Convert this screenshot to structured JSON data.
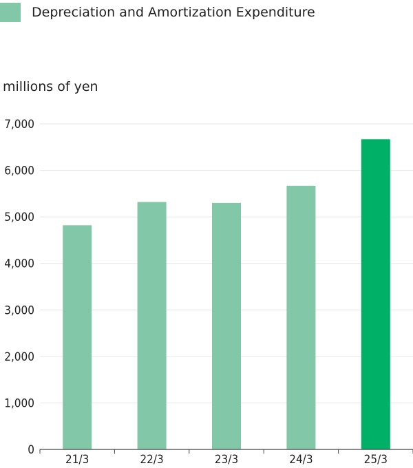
{
  "chart_data": {
    "type": "bar",
    "legend": {
      "label": "Depreciation and Amortization Expenditure",
      "color": "#82c8a8"
    },
    "ylabel": "millions of yen",
    "categories": [
      "21/3",
      "22/3",
      "23/3",
      "24/3",
      "25/3"
    ],
    "values": [
      4820,
      5320,
      5300,
      5670,
      6670
    ],
    "colors": [
      "#82c8a8",
      "#82c8a8",
      "#82c8a8",
      "#82c8a8",
      "#00b066"
    ],
    "ylim": [
      0,
      7000
    ],
    "yticks": [
      0,
      1000,
      2000,
      3000,
      4000,
      5000,
      6000,
      7000
    ],
    "ytick_labels": [
      "0",
      "1,000",
      "2,000",
      "3,000",
      "4,000",
      "5,000",
      "6,000",
      "7,000"
    ],
    "grid": true
  }
}
